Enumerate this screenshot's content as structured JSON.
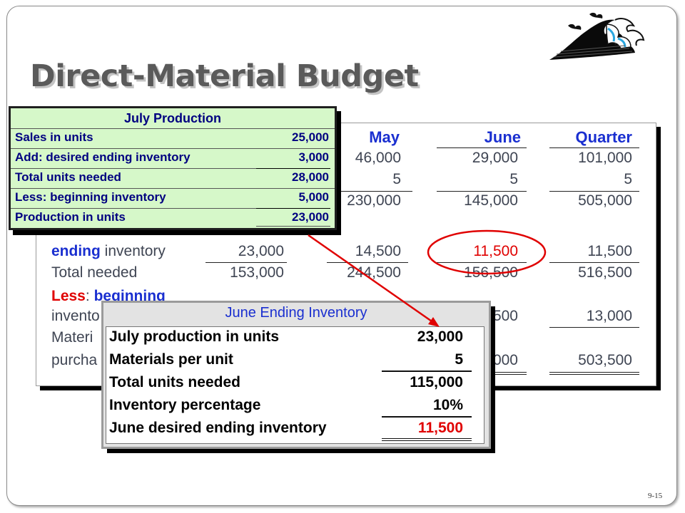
{
  "slide": {
    "title": "Direct-Material Budget",
    "slide_number": "9-15",
    "logo_icon": "wave-icon"
  },
  "budget_table": {
    "headers": {
      "may": "May",
      "june": "June",
      "quarter": "Quarter"
    },
    "rows": [
      {
        "may": "46,000",
        "june": "29,000",
        "quarter": "101,000"
      },
      {
        "may": "5",
        "june": "5",
        "quarter": "5"
      },
      {
        "may": "230,000",
        "june": "145,000",
        "quarter": "505,000"
      },
      {
        "label_bold": "ending",
        "label": "inventory",
        "april": "23,000",
        "may": "14,500",
        "june": "11,500",
        "quarter": "11,500"
      },
      {
        "label": "Total needed",
        "april": "153,000",
        "may": "244,500",
        "june": "156,500",
        "quarter": "516,500"
      },
      {
        "label_bold_red": "Less",
        "label_colon": ":",
        "label_bold": "beginning"
      },
      {
        "label": "invento",
        "june": "500",
        "quarter": "13,000"
      },
      {
        "label": "Materi"
      },
      {
        "label": "purcha",
        "june": "000",
        "quarter": "503,500"
      }
    ]
  },
  "july_production": {
    "title": "July Production",
    "rows": [
      {
        "label": "Sales in units",
        "value": "25,000"
      },
      {
        "label": "Add: desired ending inventory",
        "value": "3,000"
      },
      {
        "label": "Total units needed",
        "value": "28,000"
      },
      {
        "label": "Less: beginning inventory",
        "value": "5,000"
      },
      {
        "label": "Production in units",
        "value": "23,000"
      }
    ]
  },
  "june_ending_inventory": {
    "title": "June Ending Inventory",
    "rows": [
      {
        "label": "July production in units",
        "value": "23,000"
      },
      {
        "label": "Materials per unit",
        "value": "5"
      },
      {
        "label": "Total units needed",
        "value": "115,000"
      },
      {
        "label": "Inventory percentage",
        "value": "10%"
      },
      {
        "label": "June desired ending inventory",
        "value": "11,500"
      }
    ]
  },
  "colors": {
    "header_blue": "#1a2fd0",
    "highlight_red": "#e00000",
    "july_box_bg": "#d6f8c9",
    "title_gray": "#5a5a5a"
  }
}
